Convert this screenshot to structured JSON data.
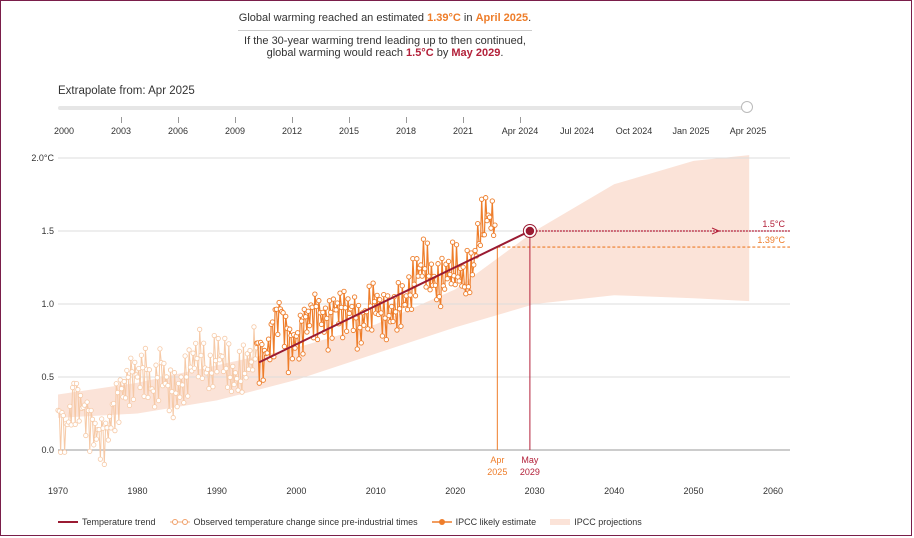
{
  "headline": {
    "line1_pre": "Global warming reached an estimated ",
    "line1_value": "1.39°C",
    "line1_mid": " in ",
    "line1_date": "April 2025",
    "line1_post": ".",
    "line2": "If the 30-year warming trend leading up to then continued,",
    "line3_pre": "global warming would reach ",
    "line3_value": "1.5°C",
    "line3_mid": " by ",
    "line3_date": "May 2029",
    "line3_post": "."
  },
  "slider": {
    "label": "Extrapolate from: Apr 2025",
    "ticks": [
      "2000",
      "2003",
      "2006",
      "2009",
      "2012",
      "2015",
      "2018",
      "2021",
      "Apr 2024",
      "Jul 2024",
      "Oct 2024",
      "Jan 2025",
      "Apr 2025"
    ],
    "value": "Apr 2025"
  },
  "chart_data": {
    "type": "line",
    "xlim": [
      1970,
      2060
    ],
    "ylim": [
      -0.2,
      2.0
    ],
    "x_ticks": [
      "1970",
      "1980",
      "1990",
      "2000",
      "2010",
      "2020",
      "2030",
      "2040",
      "2050",
      "2060"
    ],
    "y_ticks": [
      "0.0",
      "0.5",
      "1.0",
      "1.5",
      "2.0°C"
    ],
    "y_tick_values": [
      0,
      0.5,
      1.0,
      1.5,
      2.0
    ],
    "x_tick_values": [
      1970,
      1980,
      1990,
      2000,
      2010,
      2020,
      2030,
      2040,
      2050,
      2060
    ],
    "series": [
      {
        "name": "Temperature trend",
        "x": [
          1995.3,
          2029.4
        ],
        "y": [
          0.6,
          1.5
        ]
      },
      {
        "name": "Observed temperature change since pre-industrial times (faded, pre-1995)",
        "x": [
          1970,
          1971,
          1972,
          1973,
          1974,
          1975,
          1976,
          1977,
          1978,
          1979,
          1980,
          1981,
          1982,
          1983,
          1984,
          1985,
          1986,
          1987,
          1988,
          1989,
          1990,
          1991,
          1992,
          1993,
          1994,
          1995
        ],
        "y": [
          0.2,
          0.12,
          0.38,
          0.3,
          0.18,
          0.1,
          0.08,
          0.28,
          0.4,
          0.48,
          0.52,
          0.55,
          0.38,
          0.58,
          0.4,
          0.38,
          0.48,
          0.62,
          0.66,
          0.5,
          0.66,
          0.62,
          0.48,
          0.52,
          0.6,
          0.7
        ]
      },
      {
        "name": "Observed temperature change since pre-industrial times",
        "x": [
          1995,
          1996,
          1997,
          1998,
          1999,
          2000,
          2001,
          2002,
          2003,
          2004,
          2005,
          2006,
          2007,
          2008,
          2009,
          2010,
          2011,
          2012,
          2013,
          2014,
          2015,
          2016,
          2017,
          2018,
          2019,
          2020,
          2021,
          2022,
          2023,
          2024,
          2025
        ],
        "y": [
          0.66,
          0.62,
          0.8,
          0.98,
          0.72,
          0.74,
          0.86,
          0.94,
          0.92,
          0.86,
          0.98,
          0.94,
          0.96,
          0.82,
          0.96,
          1.02,
          0.9,
          0.94,
          0.98,
          1.04,
          1.18,
          1.3,
          1.18,
          1.1,
          1.22,
          1.26,
          1.16,
          1.2,
          1.48,
          1.62,
          1.54
        ]
      },
      {
        "name": "IPCC likely estimate",
        "x": [
          2025.3
        ],
        "y": [
          1.39
        ]
      }
    ],
    "projection_band": {
      "x": [
        1970,
        1980,
        1990,
        2000,
        2010,
        2020,
        2030,
        2040,
        2050,
        2057
      ],
      "lower": [
        0.22,
        0.25,
        0.34,
        0.48,
        0.66,
        0.84,
        1.0,
        1.06,
        1.04,
        1.02
      ],
      "upper": [
        0.38,
        0.46,
        0.58,
        0.7,
        0.86,
        1.1,
        1.5,
        1.82,
        1.98,
        2.02
      ]
    },
    "reference_lines": [
      {
        "label": "1.5°C",
        "y": 1.5,
        "color": "#b3213a"
      },
      {
        "label": "1.39°C",
        "y": 1.39,
        "color": "#ee7d2a"
      }
    ],
    "markers": [
      {
        "label_top": "Apr",
        "label_bottom": "2025",
        "x": 2025.3,
        "color": "#ee7d2a"
      },
      {
        "label_top": "May",
        "label_bottom": "2029",
        "x": 2029.4,
        "color": "#b3213a"
      }
    ]
  },
  "legend": {
    "trend": "Temperature trend",
    "observed": "Observed temperature change since pre-industrial times",
    "ipcc_estimate": "IPCC likely estimate",
    "ipcc_projections": "IPCC projections"
  },
  "colors": {
    "trend": "#9a1b32",
    "observed": "#ee7d2a",
    "observed_faded": "#f6c9a6",
    "band": "#fbe3d8",
    "grid": "#dddddd"
  }
}
